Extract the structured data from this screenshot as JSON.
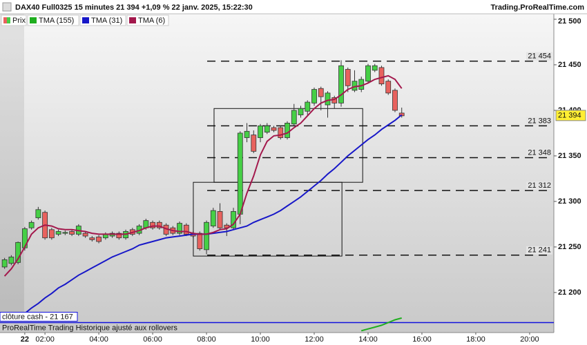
{
  "header": {
    "title": "DAX40 Full0325 15 minutes 21 394 +1,09 % 22 janv. 2025, 15:22:30",
    "brand": "Trading.ProRealTime.com"
  },
  "footer": "ProRealTime Trading Historique ajusté aux rollovers",
  "chart_data": {
    "type": "candlestick",
    "price_name": "Prix",
    "up_color": "#46cf46",
    "down_color": "#e8625e",
    "x": [
      0.5,
      0.75,
      1,
      1.25,
      1.5,
      1.75,
      2,
      2.25,
      2.5,
      2.75,
      3,
      3.25,
      3.5,
      3.75,
      4,
      4.25,
      4.5,
      4.75,
      5,
      5.25,
      5.5,
      5.75,
      6,
      6.25,
      6.5,
      6.75,
      7,
      7.25,
      7.5,
      7.75,
      8,
      8.25,
      8.5,
      8.75,
      9,
      9.25,
      9.5,
      9.75,
      10,
      10.25,
      10.5,
      10.75,
      11,
      11.25,
      11.5,
      11.75,
      12,
      12.25,
      12.5,
      12.75,
      13,
      13.25,
      13.5,
      13.75,
      14,
      14.25,
      14.5,
      14.75,
      15,
      15.25
    ],
    "open": [
      21228,
      21232,
      21233,
      21249,
      21271,
      21282,
      21288,
      21269,
      21264,
      21265,
      21267,
      21264,
      21265,
      21260,
      21261,
      21260,
      21262,
      21265,
      21260,
      21269,
      21265,
      21271,
      21277,
      21277,
      21274,
      21271,
      21265,
      21274,
      21265,
      21265,
      21247,
      21273,
      21289,
      21274,
      21271,
      21286,
      21370,
      21373,
      21370,
      21376,
      21381,
      21381,
      21370,
      21385,
      21395,
      21399,
      21408,
      21424,
      21406,
      21414,
      21408,
      21445,
      21422,
      21423,
      21432,
      21444,
      21447,
      21432,
      21422,
      21397
    ],
    "high": [
      21238,
      21241,
      21256,
      21272,
      21279,
      21294,
      21290,
      21271,
      21269,
      21268,
      21269,
      21275,
      21267,
      21262,
      21263,
      21266,
      21267,
      21267,
      21269,
      21271,
      21275,
      21281,
      21279,
      21279,
      21276,
      21273,
      21278,
      21276,
      21267,
      21267,
      21279,
      21293,
      21298,
      21276,
      21293,
      21377,
      21386,
      21378,
      21385,
      21386,
      21383,
      21383,
      21388,
      21407,
      21405,
      21411,
      21425,
      21426,
      21421,
      21416,
      21455,
      21447,
      21444,
      21437,
      21451,
      21451,
      21449,
      21434,
      21424,
      21403
    ],
    "low": [
      21226,
      21230,
      21231,
      21246,
      21269,
      21280,
      21258,
      21258,
      21262,
      21263,
      21262,
      21262,
      21260,
      21256,
      21254,
      21258,
      21260,
      21258,
      21258,
      21262,
      21263,
      21269,
      21269,
      21269,
      21262,
      21263,
      21263,
      21262,
      21260,
      21246,
      21242,
      21271,
      21269,
      21262,
      21269,
      21275,
      21365,
      21353,
      21365,
      21374,
      21376,
      21368,
      21368,
      21383,
      21392,
      21395,
      21405,
      21400,
      21392,
      21402,
      21404,
      21420,
      21420,
      21420,
      21430,
      21442,
      21427,
      21417,
      21398,
      21392
    ],
    "close": [
      21236,
      21239,
      21255,
      21270,
      21277,
      21291,
      21260,
      21260,
      21267,
      21266,
      21264,
      21273,
      21262,
      21258,
      21256,
      21264,
      21265,
      21260,
      21267,
      21264,
      21273,
      21279,
      21271,
      21271,
      21264,
      21265,
      21276,
      21264,
      21262,
      21248,
      21277,
      21290,
      21271,
      21271,
      21289,
      21375,
      21377,
      21355,
      21383,
      21383,
      21378,
      21370,
      21386,
      21400,
      21402,
      21409,
      21423,
      21415,
      21419,
      21408,
      21449,
      21427,
      21432,
      21434,
      21449,
      21449,
      21429,
      21419,
      21400,
      21394
    ],
    "series": [
      {
        "name": "TMA (155)",
        "color": "#1fae1f",
        "values": [
          null,
          null,
          null,
          null,
          null,
          null,
          null,
          null,
          null,
          null,
          null,
          null,
          null,
          null,
          null,
          null,
          null,
          null,
          null,
          null,
          null,
          null,
          null,
          null,
          null,
          null,
          null,
          null,
          null,
          null,
          null,
          null,
          null,
          null,
          null,
          null,
          null,
          null,
          null,
          null,
          null,
          null,
          null,
          null,
          null,
          null,
          null,
          null,
          null,
          null,
          null,
          null,
          null,
          21158,
          21160,
          21162,
          21164,
          21167,
          21170,
          21172
        ]
      },
      {
        "name": "TMA (31)",
        "color": "#1717c8",
        "values": [
          null,
          null,
          null,
          21177,
          21183,
          21188,
          21194,
          21199,
          21205,
          21209,
          21214,
          21219,
          21223,
          21227,
          21231,
          21235,
          21239,
          21242,
          21245,
          21248,
          21252,
          21254,
          21256,
          21258,
          21260,
          21261,
          21262,
          21263,
          21264,
          21264,
          21264,
          21265,
          21266,
          21267,
          21269,
          21271,
          21273,
          21277,
          21280,
          21283,
          21286,
          21290,
          21295,
          21300,
          21305,
          21311,
          21317,
          21323,
          21330,
          21336,
          21343,
          21350,
          21356,
          21362,
          21368,
          21373,
          21379,
          21384,
          21389,
          21395
        ]
      },
      {
        "name": "TMA (6)",
        "color": "#a3184c",
        "values": [
          21218,
          21226,
          21237,
          21250,
          21264,
          21271,
          21274,
          21273,
          21270,
          21269,
          21269,
          21268,
          21267,
          21265,
          21264,
          21264,
          21264,
          21264,
          21264,
          21266,
          21268,
          21271,
          21273,
          21273,
          21270,
          21268,
          21267,
          21267,
          21265,
          21264,
          21264,
          21266,
          21269,
          21270,
          21275,
          21286,
          21309,
          21328,
          21351,
          21366,
          21372,
          21373,
          21375,
          21381,
          21386,
          21394,
          21402,
          21408,
          21411,
          21412,
          21417,
          21423,
          21426,
          21427,
          21430,
          21434,
          21436,
          21438,
          21434,
          21424
        ]
      }
    ],
    "xlim": [
      0.33,
      20.9
    ],
    "xticks": [
      {
        "value": 1.25,
        "label": "22"
      },
      {
        "value": 2,
        "label": "02:00"
      },
      {
        "value": 4,
        "label": "04:00"
      },
      {
        "value": 6,
        "label": "06:00"
      },
      {
        "value": 8,
        "label": "08:00"
      },
      {
        "value": 10,
        "label": "10:00"
      },
      {
        "value": 12,
        "label": "12:00"
      },
      {
        "value": 14,
        "label": "14:00"
      },
      {
        "value": 16,
        "label": "16:00"
      },
      {
        "value": 18,
        "label": "18:00"
      },
      {
        "value": 20,
        "label": "20:00"
      }
    ],
    "ylim": [
      21156,
      21506
    ],
    "yticks": [
      {
        "value": 21200,
        "label": "21 200"
      },
      {
        "value": 21250,
        "label": "21 250"
      },
      {
        "value": 21300,
        "label": "21 300"
      },
      {
        "value": 21350,
        "label": "21 350"
      },
      {
        "value": 21400,
        "label": "21 400"
      },
      {
        "value": 21450,
        "label": "21 450"
      },
      {
        "value": 21500,
        "label": "21 500"
      }
    ],
    "levels": [
      {
        "value": 21454,
        "label": "21 454"
      },
      {
        "value": 21383,
        "label": "21 383"
      },
      {
        "value": 21348,
        "label": "21 348"
      },
      {
        "value": 21312,
        "label": "21 312"
      },
      {
        "value": 21241,
        "label": "21 241"
      }
    ],
    "boxes": [
      {
        "x": [
          8.28,
          13.8
        ],
        "y": [
          21321,
          21402
        ]
      },
      {
        "x": [
          7.51,
          13.03
        ],
        "y": [
          21240,
          21321
        ]
      }
    ],
    "reference_line": {
      "value": 21167,
      "label": "clôture cash -  21 167",
      "color": "#1010dd"
    },
    "last_price": {
      "value": 21394,
      "label": "21 394"
    }
  }
}
